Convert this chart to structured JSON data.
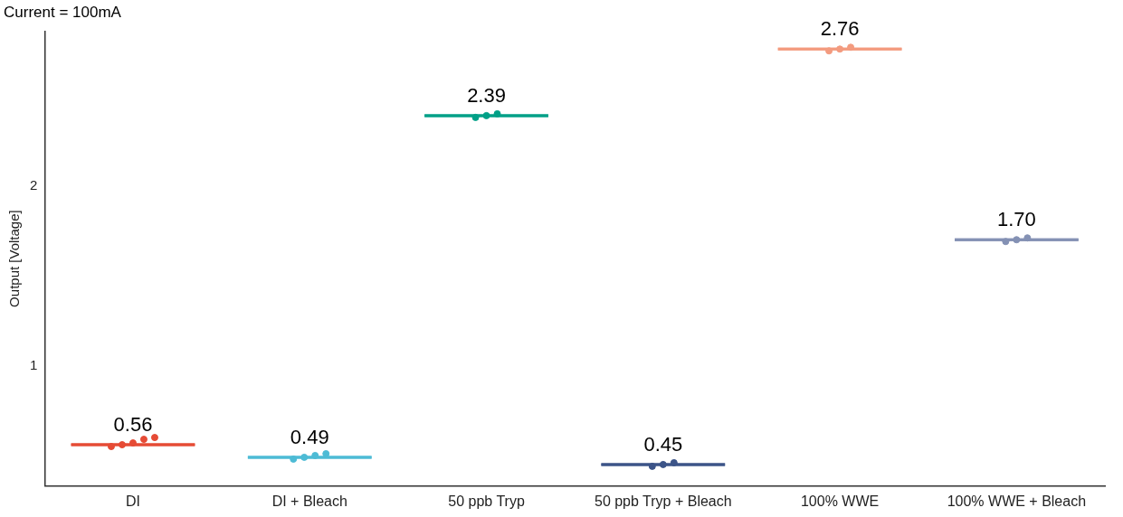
{
  "chart_data": {
    "type": "box",
    "title": "Current = 100mA",
    "ylabel": "Output [Voltage]",
    "categories": [
      "DI",
      "DI + Bleach",
      "50 ppb Tryp",
      "50 ppb Tryp + Bleach",
      "100% WWE",
      "100% WWE + Bleach"
    ],
    "boxes": [
      {
        "low": 0.56,
        "q1": 0.56,
        "median": 0.56,
        "q3": 0.56,
        "high": 0.56
      },
      {
        "low": 0.49,
        "q1": 0.49,
        "median": 0.49,
        "q3": 0.49,
        "high": 0.49
      },
      {
        "low": 2.39,
        "q1": 2.39,
        "median": 2.39,
        "q3": 2.39,
        "high": 2.39
      },
      {
        "low": 0.45,
        "q1": 0.45,
        "median": 0.45,
        "q3": 0.45,
        "high": 0.45
      },
      {
        "low": 2.76,
        "q1": 2.76,
        "median": 2.76,
        "q3": 2.76,
        "high": 2.76
      },
      {
        "low": 1.7,
        "q1": 1.7,
        "median": 1.7,
        "q3": 1.7,
        "high": 1.7
      }
    ],
    "colors": [
      "#e64b35",
      "#4dbbd5",
      "#00a087",
      "#3c5488",
      "#f39b7f",
      "#8491b4"
    ],
    "value_labels": [
      "0.56",
      "0.49",
      "2.39",
      "0.45",
      "2.76",
      "1.70"
    ],
    "series": [
      {
        "type": "scatter",
        "x": [
          "DI",
          "DI",
          "DI",
          "DI",
          "DI",
          "DI + Bleach",
          "DI + Bleach",
          "DI + Bleach",
          "DI + Bleach",
          "50 ppb Tryp",
          "50 ppb Tryp",
          "50 ppb Tryp",
          "50 ppb Tryp + Bleach",
          "50 ppb Tryp + Bleach",
          "50 ppb Tryp + Bleach",
          "100% WWE",
          "100% WWE",
          "100% WWE",
          "100% WWE + Bleach",
          "100% WWE + Bleach",
          "100% WWE + Bleach"
        ],
        "values": [
          0.55,
          0.56,
          0.57,
          0.59,
          0.6,
          0.48,
          0.49,
          0.5,
          0.51,
          2.38,
          2.39,
          2.4,
          0.44,
          0.45,
          0.46,
          2.75,
          2.76,
          2.77,
          1.69,
          1.7,
          1.71
        ],
        "colors": [
          "#e64b35",
          "#e64b35",
          "#e64b35",
          "#e64b35",
          "#e64b35",
          "#4dbbd5",
          "#4dbbd5",
          "#4dbbd5",
          "#4dbbd5",
          "#00a087",
          "#00a087",
          "#00a087",
          "#3c5488",
          "#3c5488",
          "#3c5488",
          "#f39b7f",
          "#f39b7f",
          "#f39b7f",
          "#8491b4",
          "#8491b4",
          "#8491b4"
        ]
      }
    ],
    "ylim": [
      0.33,
      2.86
    ],
    "yticks": [
      1,
      2
    ],
    "grid": false,
    "legend": false
  }
}
